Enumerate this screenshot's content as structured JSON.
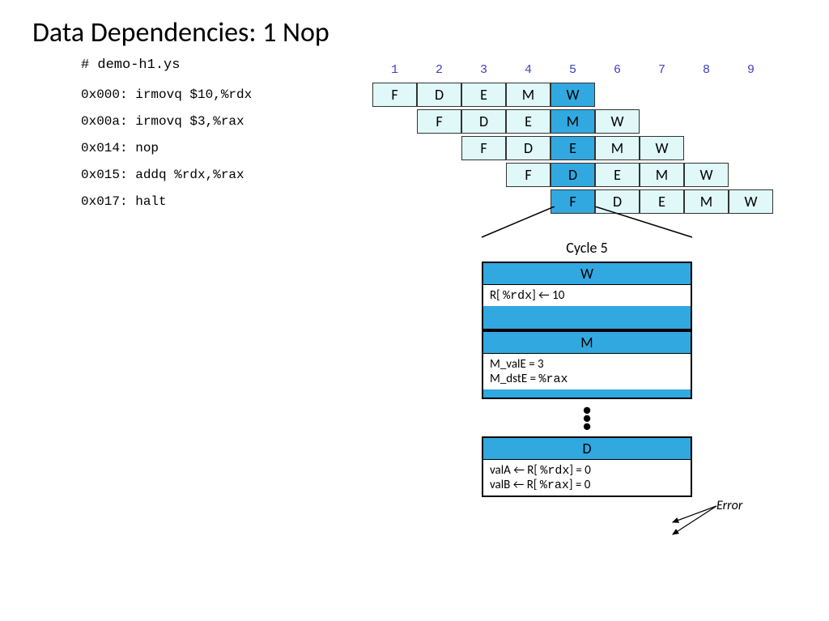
{
  "title": "Data Dependencies: 1 Nop",
  "file_comment": "# demo-h1.ys",
  "cycles": [
    "1",
    "2",
    "3",
    "4",
    "5",
    "6",
    "7",
    "8",
    "9"
  ],
  "stages": [
    "F",
    "D",
    "E",
    "M",
    "W"
  ],
  "instructions": [
    {
      "text": "0x000: irmovq $10,%rdx",
      "start": 0,
      "hilite": 4
    },
    {
      "text": "0x00a: irmovq  $3,%rax",
      "start": 1,
      "hilite": 3
    },
    {
      "text": "0x014: nop",
      "start": 2,
      "hilite": 2
    },
    {
      "text": "0x015: addq %rdx,%rax",
      "start": 3,
      "hilite": 1
    },
    {
      "text": "0x017: halt",
      "start": 4,
      "hilite": 0
    }
  ],
  "detail": {
    "cycle_label": "Cycle 5",
    "blocks": [
      {
        "head": "W",
        "lines": [
          "R[ <mono>%rdx</mono>] ← 10"
        ],
        "gap_below": true
      },
      {
        "head": "M",
        "lines": [
          "M_valE  = 3",
          "M_dstE  = <mono>%rax</mono>"
        ],
        "gap_below": false
      }
    ],
    "d_block": {
      "head": "D",
      "lines": [
        "valA  ← R[ <mono>%rdx</mono>] = 0",
        "valB  ← R[ <mono>%rax</mono>] = 0"
      ]
    },
    "error_label": "Error"
  },
  "colors": {
    "cell_bg": "#e0f8f8",
    "hilite": "#31a8e0",
    "cycle_num": "#4040c0"
  }
}
